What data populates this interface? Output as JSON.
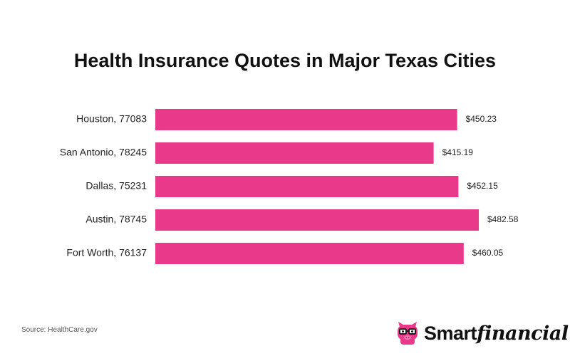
{
  "chart_data": {
    "type": "bar",
    "orientation": "horizontal",
    "title": "Health Insurance Quotes in Major Texas Cities",
    "categories": [
      "Houston, 77083",
      "San Antonio, 78245",
      "Dallas, 75231",
      "Austin, 78745",
      "Fort Worth, 76137"
    ],
    "values": [
      450.23,
      415.19,
      452.15,
      482.58,
      460.05
    ],
    "data_labels": [
      "$450.23",
      "$415.19",
      "$452.15",
      "$482.58",
      "$460.05"
    ],
    "xlabel": "",
    "ylabel": "",
    "xlim": [
      0,
      482.58
    ],
    "grid": false,
    "legend": "none",
    "bar_color": "#E8398A"
  },
  "footer": {
    "source": "Source: HealthCare.gov",
    "brand_part1": "Smart",
    "brand_part2": "financial"
  },
  "brand_colors": {
    "pig": "#E8398A",
    "glasses": "#1a1a1a"
  }
}
